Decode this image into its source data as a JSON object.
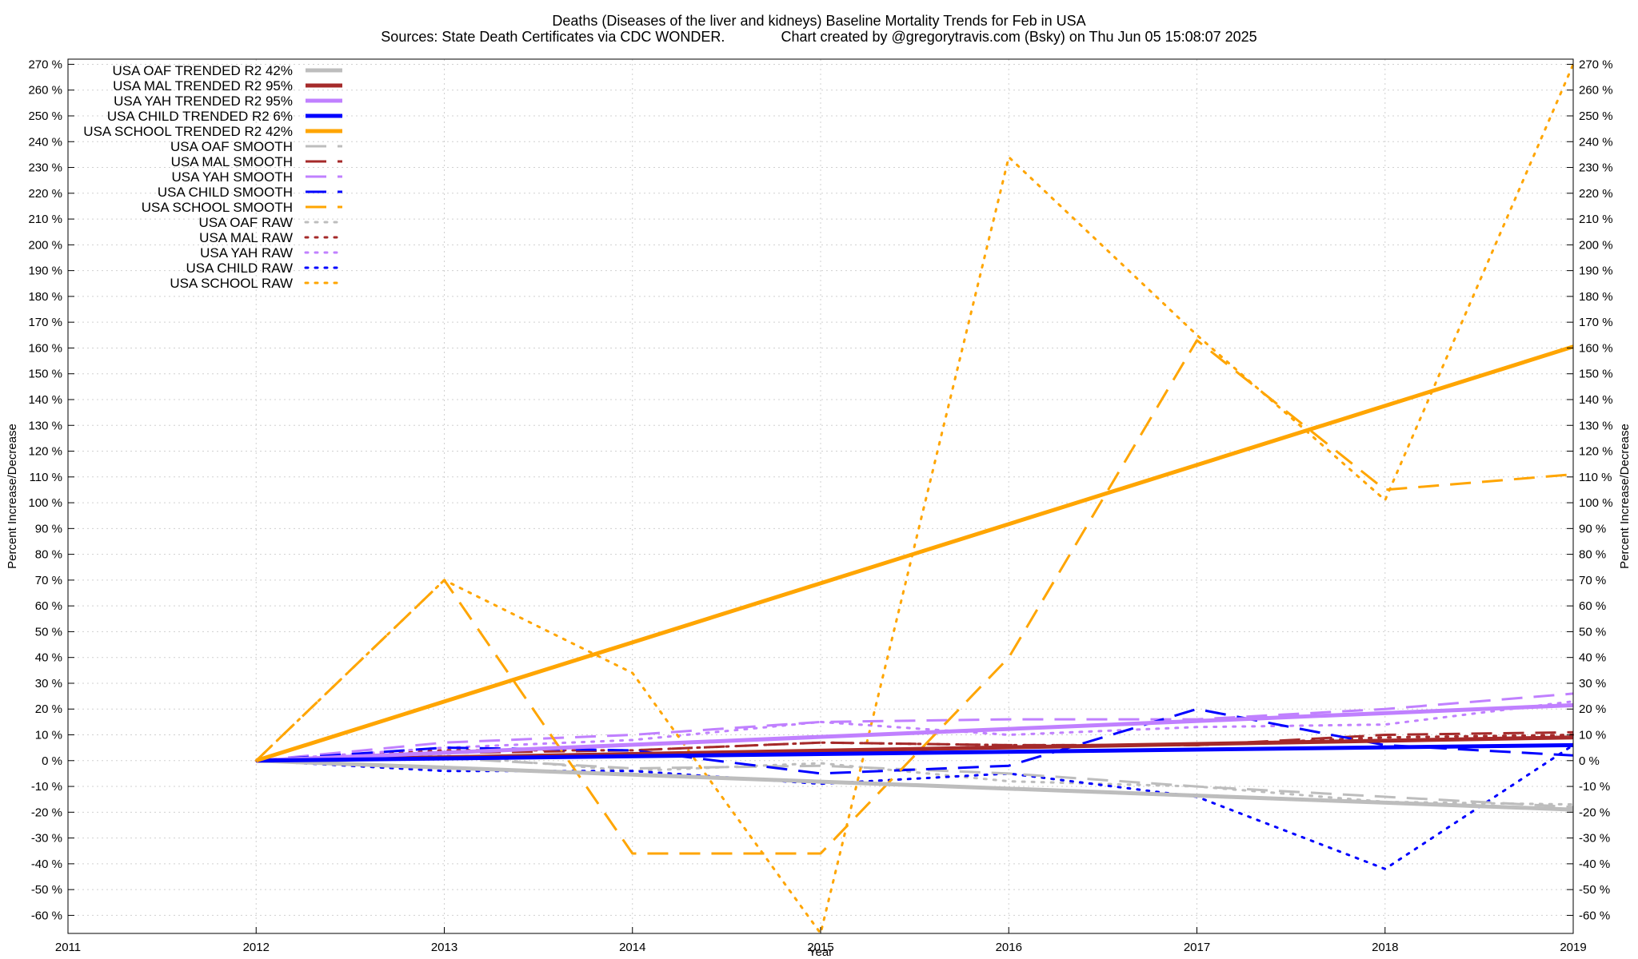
{
  "chart_data": {
    "type": "line",
    "title": "Deaths (Diseases of the liver and kidneys)  Baseline Mortality Trends for Feb in USA",
    "subtitle": "Sources: State Death Certificates via CDC WONDER.              Chart created by @gregorytravis.com (Bsky) on Thu Jun 05 15:08:07 2025",
    "xlabel": "Year",
    "ylabel": "Percent Increase/Decrease",
    "y2label": "Percent Increase/Decrease",
    "xlim": [
      2011,
      2019
    ],
    "ylim": [
      -67,
      272
    ],
    "xticks": [
      "2011",
      "2012",
      "2013",
      "2014",
      "2015",
      "2016",
      "2017",
      "2018",
      "2019"
    ],
    "yticks": [
      "-60 %",
      "-50 %",
      "-40 %",
      "-30 %",
      "-20 %",
      "-10 %",
      "0 %",
      "10 %",
      "20 %",
      "30 %",
      "40 %",
      "50 %",
      "60 %",
      "70 %",
      "80 %",
      "90 %",
      "100 %",
      "110 %",
      "120 %",
      "130 %",
      "140 %",
      "150 %",
      "160 %",
      "170 %",
      "180 %",
      "190 %",
      "200 %",
      "210 %",
      "220 %",
      "230 %",
      "240 %",
      "250 %",
      "260 %",
      "270 %"
    ],
    "grid": true,
    "legend_position": "top-left",
    "series": [
      {
        "name": "USA OAF TRENDED R2  42%",
        "color": "#bdbdbd",
        "style": "solid",
        "width": 5,
        "points": [
          [
            2012,
            0
          ],
          [
            2019,
            -19
          ]
        ]
      },
      {
        "name": "USA MAL TRENDED R2  95%",
        "color": "#a52a2a",
        "style": "solid",
        "width": 5,
        "points": [
          [
            2012,
            0
          ],
          [
            2019,
            9
          ]
        ]
      },
      {
        "name": "USA YAH TRENDED R2  95%",
        "color": "#c080ff",
        "style": "solid",
        "width": 5,
        "points": [
          [
            2012,
            0
          ],
          [
            2019,
            21.5
          ]
        ]
      },
      {
        "name": "USA CHILD TRENDED R2   6%",
        "color": "#0000ff",
        "style": "solid",
        "width": 5,
        "points": [
          [
            2012,
            0
          ],
          [
            2019,
            6
          ]
        ]
      },
      {
        "name": "USA SCHOOL TRENDED R2  42%",
        "color": "#ffa500",
        "style": "solid",
        "width": 5,
        "points": [
          [
            2012,
            0
          ],
          [
            2019,
            160.5
          ]
        ]
      },
      {
        "name": "USA OAF SMOOTH",
        "color": "#bdbdbd",
        "style": "dashed",
        "width": 3,
        "points": [
          [
            2012,
            0
          ],
          [
            2013,
            1
          ],
          [
            2014,
            -3
          ],
          [
            2015,
            -2
          ],
          [
            2016,
            -5
          ],
          [
            2017,
            -10
          ],
          [
            2018,
            -14
          ],
          [
            2019,
            -18
          ]
        ]
      },
      {
        "name": "USA MAL SMOOTH",
        "color": "#a52a2a",
        "style": "dashed",
        "width": 3,
        "points": [
          [
            2012,
            0
          ],
          [
            2013,
            3
          ],
          [
            2014,
            4
          ],
          [
            2015,
            7
          ],
          [
            2016,
            6
          ],
          [
            2017,
            6
          ],
          [
            2018,
            10
          ],
          [
            2019,
            11
          ]
        ]
      },
      {
        "name": "USA YAH SMOOTH",
        "color": "#c080ff",
        "style": "dashed",
        "width": 3,
        "points": [
          [
            2012,
            0
          ],
          [
            2013,
            7
          ],
          [
            2014,
            10
          ],
          [
            2015,
            15
          ],
          [
            2016,
            16
          ],
          [
            2017,
            16
          ],
          [
            2018,
            20
          ],
          [
            2019,
            26
          ]
        ]
      },
      {
        "name": "USA CHILD SMOOTH",
        "color": "#0000ff",
        "style": "dashed",
        "width": 3,
        "points": [
          [
            2012,
            0
          ],
          [
            2013,
            5
          ],
          [
            2014,
            4
          ],
          [
            2015,
            -5
          ],
          [
            2016,
            -2
          ],
          [
            2017,
            20
          ],
          [
            2018,
            6
          ],
          [
            2019,
            2
          ]
        ]
      },
      {
        "name": "USA SCHOOL SMOOTH",
        "color": "#ffa500",
        "style": "dashed",
        "width": 3,
        "points": [
          [
            2012,
            0
          ],
          [
            2013,
            70
          ],
          [
            2014,
            -36
          ],
          [
            2015,
            -36
          ],
          [
            2016,
            40
          ],
          [
            2017,
            163
          ],
          [
            2018,
            105
          ],
          [
            2019,
            111
          ]
        ]
      },
      {
        "name": "USA OAF RAW",
        "color": "#bdbdbd",
        "style": "dotted",
        "width": 3,
        "points": [
          [
            2012,
            0
          ],
          [
            2013,
            2
          ],
          [
            2014,
            -4
          ],
          [
            2015,
            -1
          ],
          [
            2016,
            -8
          ],
          [
            2017,
            -10
          ],
          [
            2018,
            -16
          ],
          [
            2019,
            -17
          ]
        ]
      },
      {
        "name": "USA MAL RAW",
        "color": "#a52a2a",
        "style": "dotted",
        "width": 3,
        "points": [
          [
            2012,
            0
          ],
          [
            2013,
            4
          ],
          [
            2014,
            4
          ],
          [
            2015,
            7
          ],
          [
            2016,
            6
          ],
          [
            2017,
            6
          ],
          [
            2018,
            9
          ],
          [
            2019,
            10
          ]
        ]
      },
      {
        "name": "USA YAH RAW",
        "color": "#c080ff",
        "style": "dotted",
        "width": 3,
        "points": [
          [
            2012,
            0
          ],
          [
            2013,
            5
          ],
          [
            2014,
            8
          ],
          [
            2015,
            15
          ],
          [
            2016,
            10
          ],
          [
            2017,
            13
          ],
          [
            2018,
            14
          ],
          [
            2019,
            23
          ]
        ]
      },
      {
        "name": "USA CHILD RAW",
        "color": "#0000ff",
        "style": "dotted",
        "width": 3,
        "points": [
          [
            2012,
            0
          ],
          [
            2013,
            -4
          ],
          [
            2014,
            -4
          ],
          [
            2015,
            -9
          ],
          [
            2016,
            -5
          ],
          [
            2017,
            -14
          ],
          [
            2018,
            -42
          ],
          [
            2019,
            6
          ]
        ]
      },
      {
        "name": "USA SCHOOL RAW",
        "color": "#ffa500",
        "style": "dotted",
        "width": 3,
        "points": [
          [
            2012,
            0
          ],
          [
            2013,
            70
          ],
          [
            2014,
            34
          ],
          [
            2015,
            -67
          ],
          [
            2016,
            234
          ],
          [
            2017,
            165
          ],
          [
            2018,
            101
          ],
          [
            2019,
            270
          ]
        ]
      }
    ]
  }
}
